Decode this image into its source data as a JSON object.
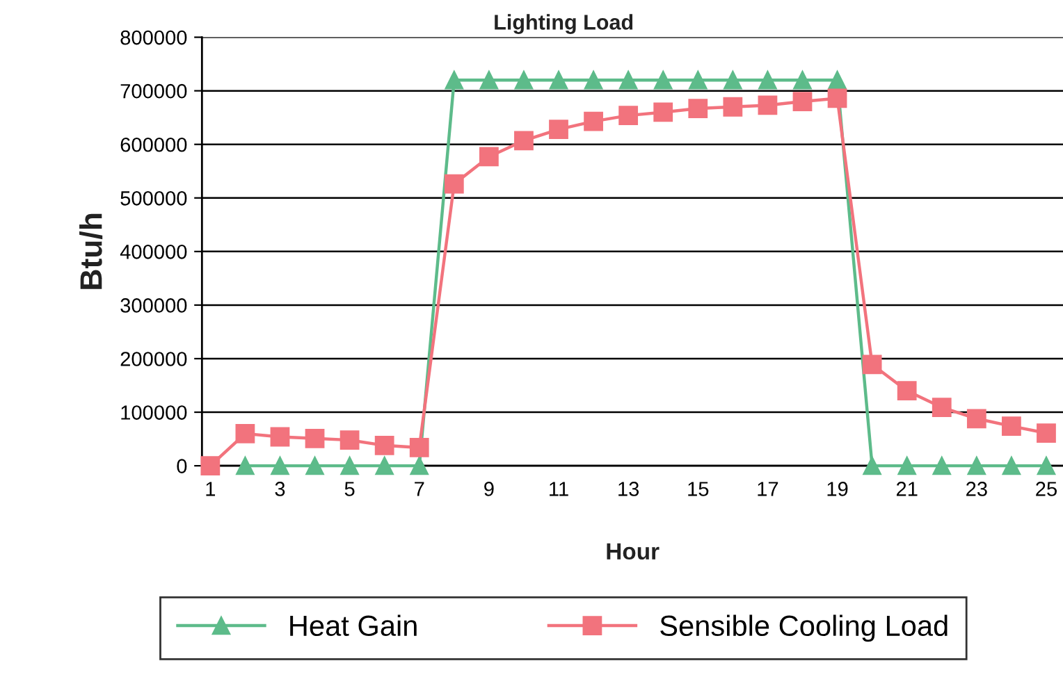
{
  "chart_data": {
    "type": "line",
    "title": "Lighting Load",
    "xlabel": "Hour",
    "ylabel": "Btu/h",
    "categories": [
      "1",
      null,
      "3",
      null,
      "5",
      null,
      "7",
      null,
      "9",
      null,
      "11",
      null,
      "13",
      null,
      "15",
      null,
      "17",
      null,
      "19",
      null,
      "21",
      null,
      "23",
      null,
      "25"
    ],
    "series": [
      {
        "name": "Heat Gain",
        "color": "#5dbb8a",
        "marker": "triangle",
        "values": [
          null,
          0,
          0,
          0,
          0,
          0,
          0,
          720000,
          720000,
          720000,
          720000,
          720000,
          720000,
          720000,
          720000,
          720000,
          720000,
          720000,
          720000,
          0,
          0,
          0,
          0,
          0,
          0
        ]
      },
      {
        "name": "Sensible Cooling Load",
        "color": "#f2737d",
        "marker": "square",
        "values": [
          0,
          60000,
          54000,
          51000,
          48000,
          38000,
          34000,
          526000,
          577000,
          607000,
          628000,
          643000,
          654000,
          660000,
          667000,
          670000,
          673000,
          680000,
          686000,
          189000,
          140000,
          109000,
          88000,
          74000,
          61000
        ]
      }
    ],
    "ylim": [
      0,
      800000
    ],
    "yticks": [
      0,
      100000,
      200000,
      300000,
      400000,
      500000,
      600000,
      700000,
      800000
    ],
    "grid": "y",
    "legend": "bottom",
    "line_style": "solid"
  }
}
